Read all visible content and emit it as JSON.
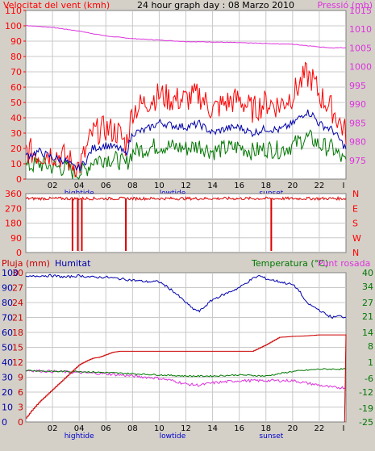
{
  "colors": {
    "background": "#d4d0c8",
    "plot_bg": "#ffffff",
    "grid": "#c8c8c8",
    "wind_speed": "#ff0000",
    "wind_gust": "#0000aa",
    "wind_avg": "#007700",
    "pressure": "#dd33dd",
    "direction": "#dd0000",
    "rain": "#cc0000",
    "humidity": "#0000aa",
    "temperature": "#007700",
    "dewpoint": "#dd33dd",
    "tide_label": "#0000cc"
  },
  "chart_data": [
    {
      "type": "line",
      "title": "24 hour graph day : 08 Marzo 2010",
      "left_label": "Velocitat del vent (kmh)",
      "right_label": "Pressió (mb)",
      "ylim_left": [
        0,
        110
      ],
      "yticks_left": [
        "0",
        "10",
        "20",
        "30",
        "40",
        "50",
        "60",
        "70",
        "80",
        "90",
        "100",
        "110"
      ],
      "ylim_right": [
        970,
        1015
      ],
      "yticks_right": [
        "975",
        "980",
        "985",
        "990",
        "995",
        "1000",
        "1005",
        "1010",
        "1015"
      ],
      "xlim": [
        0,
        24
      ],
      "xticks": [
        "02",
        "04",
        "06",
        "08",
        "10",
        "12",
        "14",
        "16",
        "18",
        "20",
        "22"
      ],
      "xtick_values": [
        2,
        4,
        6,
        8,
        10,
        12,
        14,
        16,
        18,
        20,
        22
      ],
      "last_tick_label": "I",
      "tide_labels": [
        {
          "label": "hightide",
          "x": 4
        },
        {
          "label": "lowtide",
          "x": 11
        },
        {
          "label": "sunset",
          "x": 18.4
        }
      ],
      "series": [
        {
          "key": "gust",
          "x": [
            0,
            1,
            2,
            3,
            3.5,
            4,
            4.5,
            5,
            6,
            7,
            7.5,
            8,
            9,
            10,
            11,
            12,
            13,
            14,
            15,
            16,
            17,
            18,
            19,
            20,
            21,
            21.5,
            22,
            23,
            24
          ],
          "y": [
            19,
            16,
            17,
            14,
            10,
            8,
            18,
            30,
            33,
            30,
            22,
            45,
            50,
            55,
            52,
            52,
            55,
            45,
            50,
            52,
            45,
            50,
            48,
            55,
            68,
            65,
            55,
            45,
            30
          ]
        },
        {
          "key": "mean",
          "x": [
            0,
            1,
            2,
            3,
            3.5,
            4,
            4.5,
            5,
            6,
            7,
            7.5,
            8,
            9,
            10,
            11,
            12,
            13,
            14,
            15,
            16,
            17,
            18,
            19,
            20,
            21,
            21.5,
            22,
            23,
            24
          ],
          "y": [
            15,
            18,
            14,
            12,
            8,
            7,
            12,
            20,
            22,
            20,
            16,
            30,
            32,
            37,
            35,
            34,
            36,
            30,
            33,
            34,
            30,
            33,
            32,
            36,
            44,
            42,
            36,
            32,
            20
          ]
        },
        {
          "key": "avg",
          "x": [
            0,
            1,
            2,
            3,
            3.5,
            4,
            4.5,
            5,
            6,
            7,
            7.5,
            8,
            9,
            10,
            11,
            12,
            13,
            14,
            15,
            16,
            17,
            18,
            19,
            20,
            21,
            21.5,
            22,
            23,
            24
          ],
          "y": [
            8,
            10,
            8,
            7,
            5,
            4,
            6,
            12,
            14,
            12,
            9,
            18,
            20,
            22,
            21,
            20,
            22,
            18,
            20,
            21,
            18,
            20,
            19,
            22,
            27,
            26,
            22,
            20,
            10
          ]
        },
        {
          "key": "pressure",
          "x": [
            0,
            2,
            4,
            6,
            8,
            10,
            12,
            14,
            16,
            18,
            20,
            22,
            23,
            24
          ],
          "y": [
            1011,
            1010.5,
            1009.5,
            1008.2,
            1007.5,
            1007.1,
            1006.7,
            1006.6,
            1006.4,
            1006.2,
            1006,
            1005.3,
            1005,
            1005.1
          ]
        }
      ]
    },
    {
      "type": "line",
      "left_label": "",
      "yticks_left": [
        "0",
        "90",
        "180",
        "270",
        "360"
      ],
      "ylim_left": [
        0,
        360
      ],
      "yticks_right": [
        "N",
        "W",
        "S",
        "E",
        "N"
      ],
      "xlim": [
        0,
        24
      ],
      "series": [
        {
          "key": "direction",
          "baseline": 330,
          "drops": [
            [
              3.5,
              10
            ],
            [
              3.9,
              10
            ],
            [
              4.2,
              10
            ],
            [
              7.5,
              10
            ],
            [
              18.4,
              10
            ]
          ]
        }
      ]
    },
    {
      "type": "line",
      "left_label": "Pluja (mm)",
      "left_label2": "Humitat",
      "right_label": "Temperatura (°C)",
      "right_label2": "Punt rosada",
      "ylim_left": [
        0,
        100
      ],
      "yticks_left_rain": [
        "0",
        "3",
        "6",
        "9",
        "12",
        "15",
        "18",
        "21",
        "24",
        "27",
        "30"
      ],
      "yticks_left_hum": [
        "0",
        "10",
        "20",
        "30",
        "40",
        "50",
        "60",
        "70",
        "80",
        "90",
        "100"
      ],
      "ylim_right": [
        -25,
        40
      ],
      "yticks_right": [
        "-25",
        "-19",
        "-12",
        "-6",
        "1",
        "8",
        "14",
        "21",
        "27",
        "34",
        "40"
      ],
      "xlim": [
        0,
        24
      ],
      "xticks": [
        "02",
        "04",
        "06",
        "08",
        "10",
        "12",
        "14",
        "16",
        "18",
        "20",
        "22"
      ],
      "xtick_values": [
        2,
        4,
        6,
        8,
        10,
        12,
        14,
        16,
        18,
        20,
        22
      ],
      "last_tick_label": "I",
      "tide_labels": [
        {
          "label": "hightide",
          "x": 4
        },
        {
          "label": "lowtide",
          "x": 11
        },
        {
          "label": "sunset",
          "x": 18.4
        }
      ],
      "series": [
        {
          "key": "humidity",
          "x": [
            0,
            1,
            2,
            3,
            4,
            5,
            6,
            7,
            8,
            9,
            10,
            11,
            11.5,
            12,
            12.5,
            13,
            13.5,
            14,
            15,
            16,
            17,
            17.5,
            18,
            19,
            20,
            20.5,
            21,
            22,
            22.5,
            23,
            23.5,
            24
          ],
          "y": [
            97,
            98,
            98,
            97,
            98,
            97,
            97,
            96,
            95,
            94,
            94,
            88,
            84,
            80,
            76,
            74,
            78,
            82,
            86,
            90,
            96,
            98,
            96,
            94,
            92,
            88,
            80,
            75,
            72,
            70,
            71,
            70
          ]
        },
        {
          "key": "rain",
          "x": [
            0,
            0.5,
            1,
            2,
            3,
            4,
            4.5,
            5,
            5.5,
            6,
            6.5,
            7,
            8,
            10,
            12,
            14,
            16,
            17,
            18,
            19,
            20,
            21,
            22,
            23,
            24
          ],
          "y": [
            0.8,
            2.5,
            4,
            6.5,
            9,
            11.5,
            12.2,
            12.8,
            13,
            13.5,
            14,
            14.2,
            14.2,
            14.2,
            14.2,
            14.2,
            14.2,
            14.2,
            15.5,
            17,
            17.2,
            17.3,
            17.5,
            17.5,
            17.5
          ]
        },
        {
          "key": "temperature",
          "x": [
            0,
            2,
            4,
            6,
            8,
            10,
            12,
            14,
            16,
            18,
            20,
            22,
            23,
            24
          ],
          "y": [
            -2.5,
            -3,
            -3,
            -3.5,
            -4,
            -4.5,
            -5,
            -5,
            -4.5,
            -5,
            -3,
            -2,
            -2,
            -2
          ]
        },
        {
          "key": "dewpoint",
          "x": [
            0,
            2,
            4,
            6,
            8,
            10,
            11,
            12,
            13,
            14,
            16,
            18,
            20,
            22,
            23,
            24
          ],
          "y": [
            -2.5,
            -3,
            -3.5,
            -4,
            -5,
            -6,
            -7,
            -8.5,
            -9,
            -8,
            -7,
            -7,
            -7,
            -9,
            -10,
            -10
          ]
        }
      ]
    }
  ]
}
